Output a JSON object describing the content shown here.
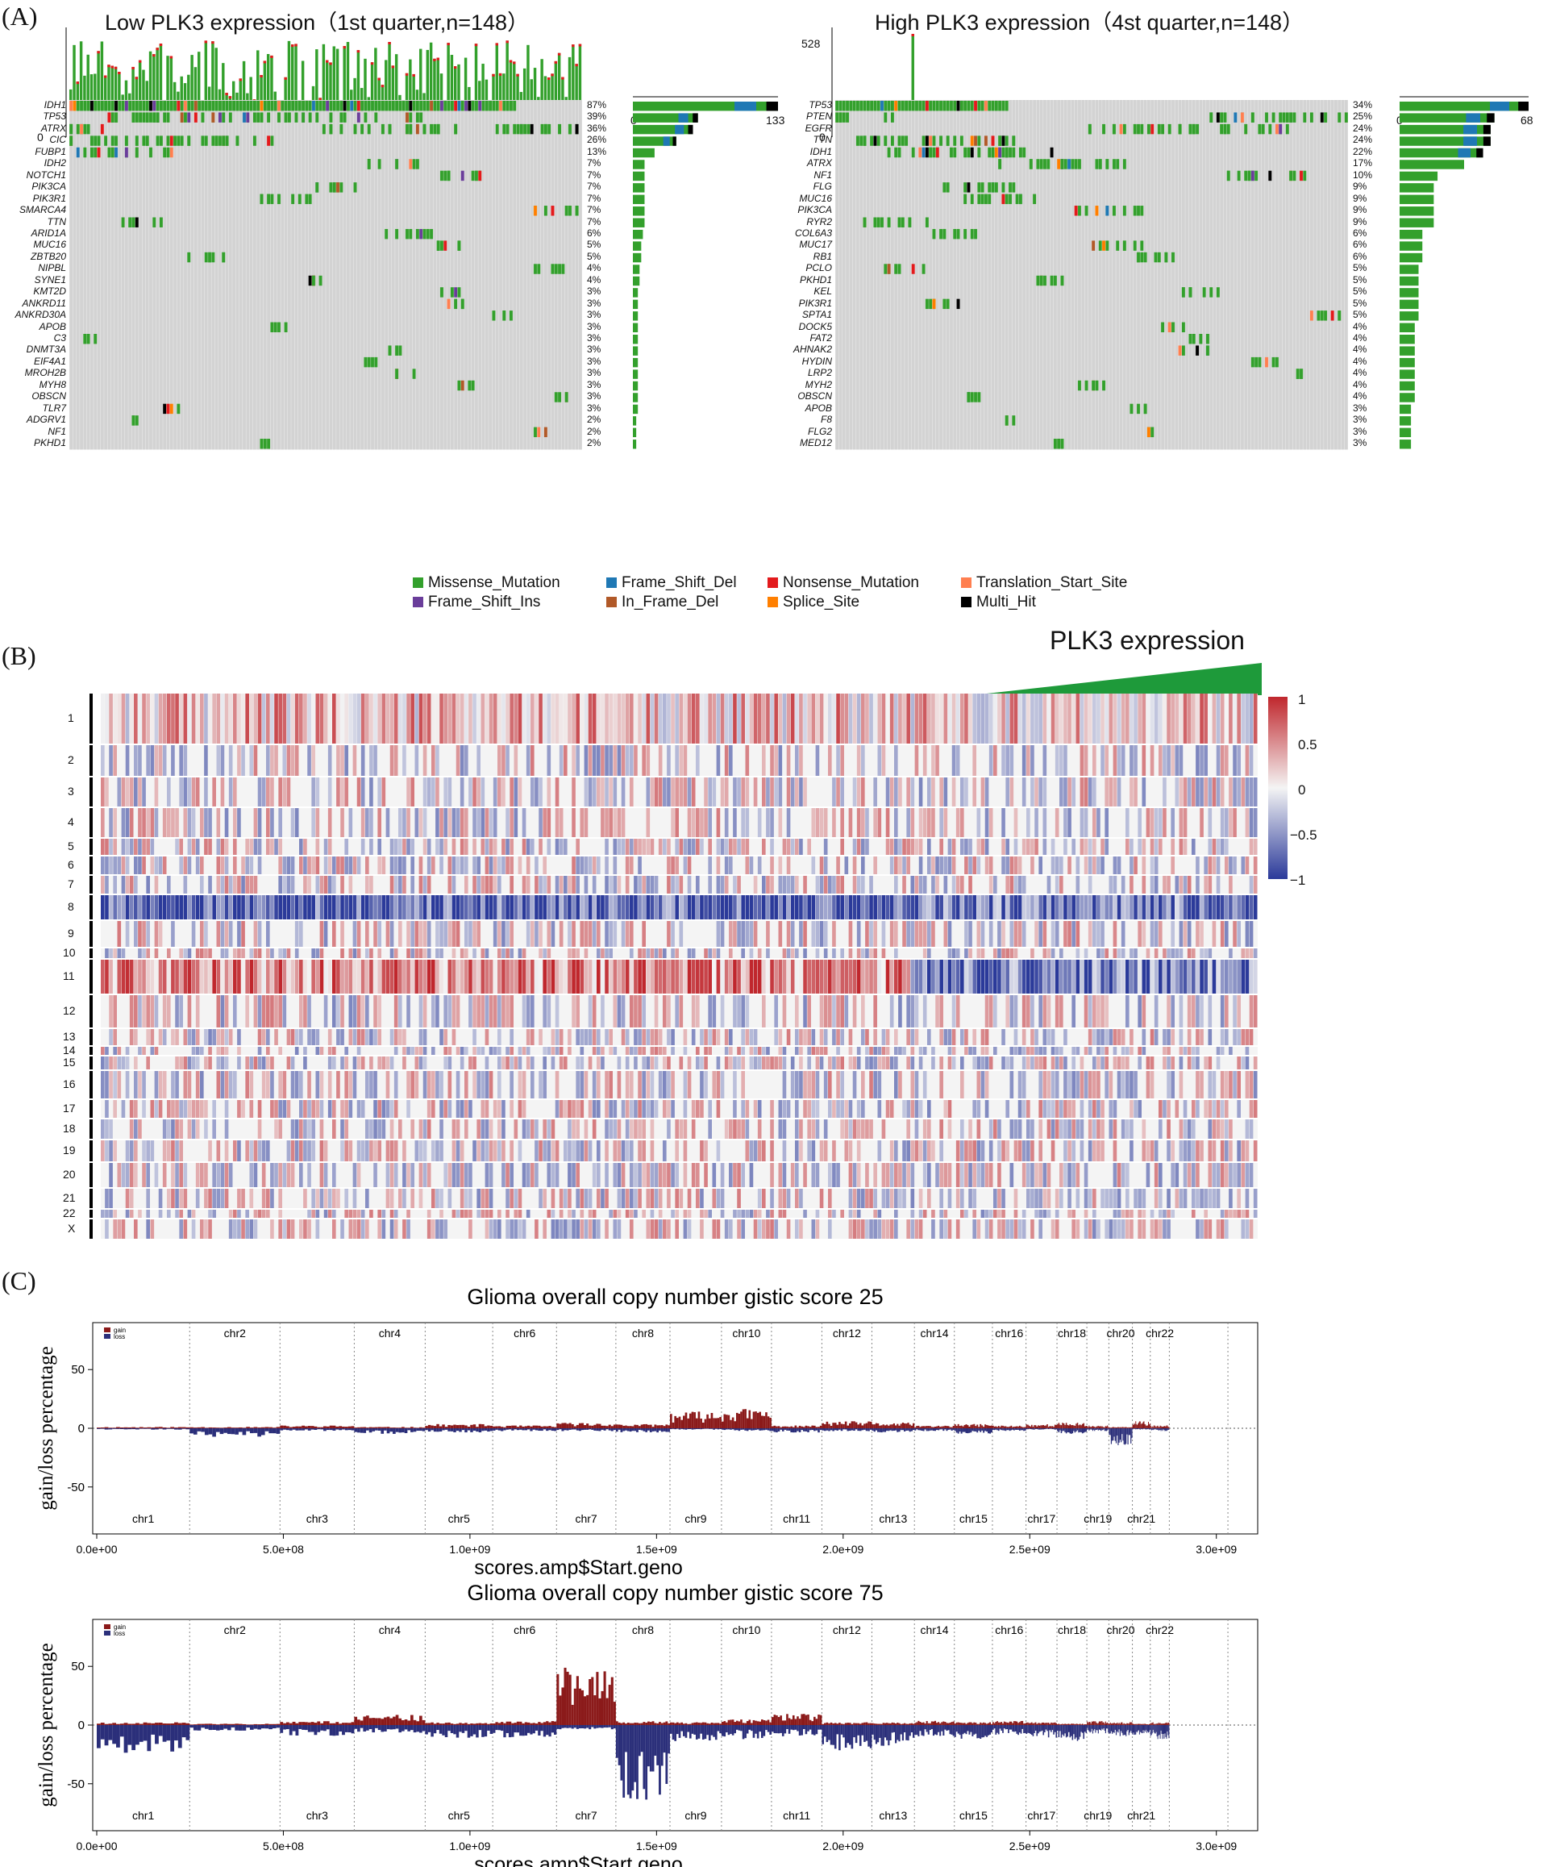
{
  "panel_a": {
    "label": "(A)",
    "low": {
      "title": "Low PLK3 expression（1st quarter,n=148）",
      "tmb_axis_top": "",
      "tmb_axis_zero": "0",
      "bar_axis_min": "0",
      "bar_axis_max": "133",
      "genes": [
        "IDH1",
        "TP53",
        "ATRX",
        "CIC",
        "FUBP1",
        "IDH2",
        "NOTCH1",
        "PIK3CA",
        "PIK3R1",
        "SMARCA4",
        "TTN",
        "ARID1A",
        "MUC16",
        "ZBTB20",
        "NIPBL",
        "SYNE1",
        "KMT2D",
        "ANKRD11",
        "ANKRD30A",
        "APOB",
        "C3",
        "DNMT3A",
        "EIF4A1",
        "MROH2B",
        "MYH8",
        "OBSCN",
        "TLR7",
        "ADGRV1",
        "NF1",
        "PKHD1"
      ],
      "pcts": [
        "87%",
        "39%",
        "36%",
        "26%",
        "13%",
        "7%",
        "7%",
        "7%",
        "7%",
        "7%",
        "7%",
        "6%",
        "5%",
        "5%",
        "4%",
        "4%",
        "3%",
        "3%",
        "3%",
        "3%",
        "3%",
        "3%",
        "3%",
        "3%",
        "3%",
        "3%",
        "3%",
        "2%",
        "2%",
        "2%"
      ]
    },
    "high": {
      "title": "High PLK3 expression（4st quarter,n=148）",
      "tmb_axis_top": "528",
      "tmb_axis_zero": "0",
      "bar_axis_min": "0",
      "bar_axis_max": "68",
      "genes": [
        "TP53",
        "PTEN",
        "EGFR",
        "TTN",
        "IDH1",
        "ATRX",
        "NF1",
        "FLG",
        "MUC16",
        "PIK3CA",
        "RYR2",
        "COL6A3",
        "MUC17",
        "RB1",
        "PCLO",
        "PKHD1",
        "KEL",
        "PIK3R1",
        "SPTA1",
        "DOCK5",
        "FAT2",
        "AHNAK2",
        "HYDIN",
        "LRP2",
        "MYH2",
        "OBSCN",
        "APOB",
        "F8",
        "FLG2",
        "MED12"
      ],
      "pcts": [
        "34%",
        "25%",
        "24%",
        "24%",
        "22%",
        "17%",
        "10%",
        "9%",
        "9%",
        "9%",
        "9%",
        "6%",
        "6%",
        "6%",
        "5%",
        "5%",
        "5%",
        "5%",
        "5%",
        "4%",
        "4%",
        "4%",
        "4%",
        "4%",
        "4%",
        "4%",
        "3%",
        "3%",
        "3%",
        "3%"
      ]
    },
    "legend": [
      {
        "label": "Missense_Mutation",
        "color": "#33a02c"
      },
      {
        "label": "Frame_Shift_Del",
        "color": "#1f78b4"
      },
      {
        "label": "Nonsense_Mutation",
        "color": "#e31a1c"
      },
      {
        "label": "Translation_Start_Site",
        "color": "#ff7f50"
      },
      {
        "label": "Frame_Shift_Ins",
        "color": "#6a3d9a"
      },
      {
        "label": "In_Frame_Del",
        "color": "#b15928"
      },
      {
        "label": "Splice_Site",
        "color": "#ff7f00"
      },
      {
        "label": "Multi_Hit",
        "color": "#000000"
      }
    ]
  },
  "panel_b": {
    "label": "(B)",
    "title": "PLK3 expression",
    "chromosomes": [
      "1",
      "2",
      "3",
      "4",
      "5",
      "6",
      "7",
      "8",
      "9",
      "10",
      "11",
      "12",
      "13",
      "14",
      "15",
      "16",
      "17",
      "18",
      "19",
      "20",
      "21",
      "22",
      "X"
    ],
    "colorbar_ticks": [
      "1",
      "0.5",
      "0",
      "−0.5",
      "−1"
    ],
    "colors": {
      "high": "#c0272d",
      "mid": "#f4f4f4",
      "low": "#2b3a9a",
      "accent": "#1e9a3a"
    }
  },
  "panel_c": {
    "label": "(C)",
    "legend_gain": "gain",
    "legend_loss": "loss",
    "chrom_top": [
      "chr2",
      "chr4",
      "chr6",
      "chr8",
      "chr10",
      "chr12",
      "chr14",
      "chr16",
      "chr18",
      "chr20",
      "chr22"
    ],
    "chrom_bottom": [
      "chr1",
      "chr3",
      "chr5",
      "chr7",
      "chr9",
      "chr11",
      "chr13",
      "chr15",
      "chr17",
      "chr19",
      "chr21"
    ]
  },
  "chart_data": [
    {
      "type": "area",
      "title": "Glioma overall copy number gistic score 25",
      "xlabel": "scores.amp$Start.geno",
      "ylabel": "gain/loss percentage",
      "xlim": [
        0,
        3100000000
      ],
      "ylim": [
        -90,
        90
      ],
      "xticks": [
        "0.0e+00",
        "5.0e+08",
        "1.0e+09",
        "1.5e+09",
        "2.0e+09",
        "2.5e+09",
        "3.0e+09"
      ],
      "yticks": [
        "50",
        "0",
        "-50"
      ],
      "series": [
        {
          "name": "gain",
          "values": [
            1,
            1,
            2,
            1,
            3,
            2,
            4,
            3,
            12,
            14,
            2,
            5,
            4,
            2,
            3,
            2,
            3,
            4,
            2,
            1,
            5,
            2
          ]
        },
        {
          "name": "loss",
          "values": [
            -1,
            -6,
            -2,
            -4,
            -3,
            -2,
            -2,
            -3,
            -1,
            -2,
            -3,
            -2,
            -3,
            -2,
            -4,
            -2,
            -1,
            -4,
            -2,
            -12,
            -1,
            -2
          ]
        }
      ]
    },
    {
      "type": "area",
      "title": "Glioma overall copy number gistic score 75",
      "xlabel": "scores.amp$Start.geno",
      "ylabel": "gain/loss percentage",
      "xlim": [
        0,
        3100000000
      ],
      "ylim": [
        -90,
        90
      ],
      "xticks": [
        "0.0e+00",
        "5.0e+08",
        "1.0e+09",
        "1.5e+09",
        "2.0e+09",
        "2.5e+09",
        "3.0e+09"
      ],
      "yticks": [
        "50",
        "0",
        "-50"
      ],
      "series": [
        {
          "name": "gain",
          "values": [
            2,
            1,
            3,
            8,
            2,
            3,
            42,
            3,
            2,
            4,
            8,
            2,
            2,
            3,
            2,
            3,
            2,
            1,
            3,
            2,
            1,
            2
          ]
        },
        {
          "name": "loss",
          "values": [
            -20,
            -4,
            -8,
            -6,
            -10,
            -9,
            -3,
            -55,
            -12,
            -10,
            -8,
            -18,
            -15,
            -8,
            -10,
            -7,
            -9,
            -12,
            -6,
            -8,
            -7,
            -10
          ]
        }
      ]
    }
  ]
}
